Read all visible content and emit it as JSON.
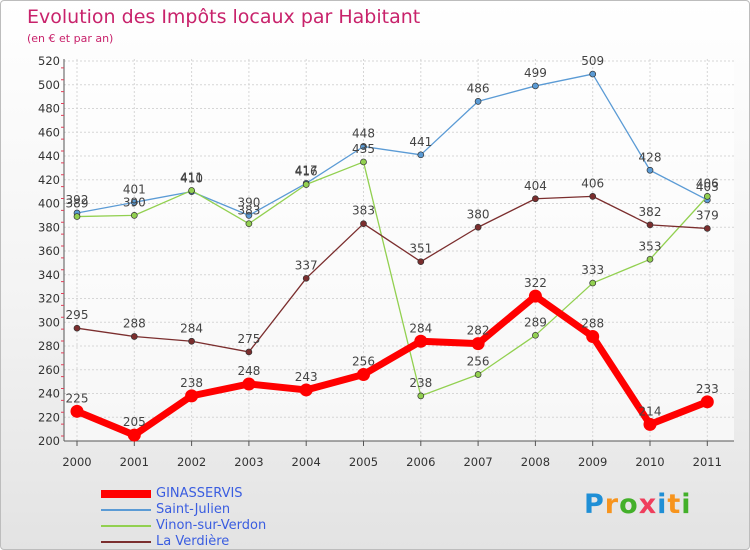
{
  "header": {
    "title": "Evolution des Impôts locaux par Habitant",
    "subtitle": "(en € et par an)"
  },
  "logo": {
    "text": "Proxiti",
    "letters": [
      {
        "ch": "P",
        "color": "#1f8fd6"
      },
      {
        "ch": "r",
        "color": "#f7941d"
      },
      {
        "ch": "o",
        "color": "#43b02a"
      },
      {
        "ch": "x",
        "color": "#ef3e5c"
      },
      {
        "ch": "i",
        "color": "#1f8fd6"
      },
      {
        "ch": "t",
        "color": "#f7941d"
      },
      {
        "ch": "i",
        "color": "#43b02a"
      }
    ]
  },
  "chart_data": {
    "type": "line",
    "title": "Evolution des Impôts locaux par Habitant",
    "subtitle": "(en € et par an)",
    "xlabel": "",
    "ylabel": "",
    "ylim": [
      200,
      520
    ],
    "ytick_step": 20,
    "grid": true,
    "legend_position": "bottom-left",
    "categories": [
      "2000",
      "2001",
      "2002",
      "2003",
      "2004",
      "2005",
      "2006",
      "2007",
      "2008",
      "2009",
      "2010",
      "2011"
    ],
    "series": [
      {
        "name": "GINASSERVIS",
        "color": "#ff0000",
        "emphasis": true,
        "values": [
          225,
          205,
          238,
          248,
          243,
          256,
          284,
          282,
          322,
          288,
          214,
          233
        ]
      },
      {
        "name": "Saint-Julien",
        "color": "#5b9bd5",
        "emphasis": false,
        "values": [
          392,
          401,
          410,
          390,
          417,
          448,
          441,
          486,
          499,
          509,
          428,
          403
        ]
      },
      {
        "name": "Vinon-sur-Verdon",
        "color": "#92d050",
        "emphasis": false,
        "values": [
          389,
          390,
          411,
          383,
          416,
          435,
          238,
          256,
          289,
          333,
          353,
          406
        ]
      },
      {
        "name": "La Verdière",
        "color": "#7b2e2e",
        "emphasis": false,
        "values": [
          295,
          288,
          284,
          275,
          337,
          383,
          351,
          380,
          404,
          406,
          382,
          379
        ]
      }
    ]
  }
}
